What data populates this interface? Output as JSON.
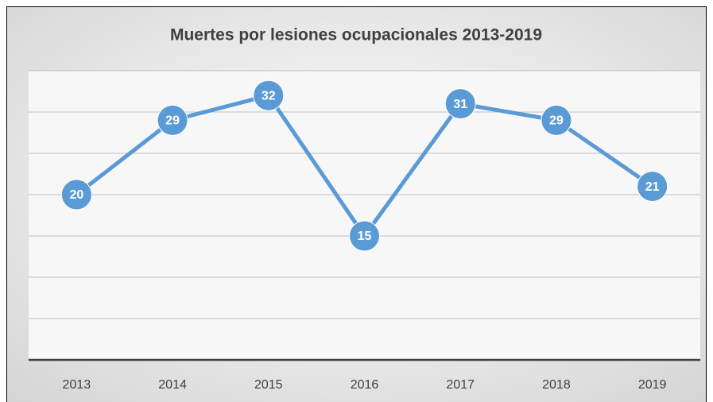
{
  "chart_data": {
    "type": "line",
    "title": "Muertes por lesiones ocupacionales 2013-2019",
    "categories": [
      "2013",
      "2014",
      "2015",
      "2016",
      "2017",
      "2018",
      "2019"
    ],
    "values": [
      20,
      29,
      32,
      15,
      31,
      29,
      21
    ],
    "color": "#5b9bd5",
    "ylim": [
      0,
      35
    ],
    "yticks": [
      0,
      5,
      10,
      15,
      20,
      25,
      30,
      35
    ],
    "grid": true
  }
}
